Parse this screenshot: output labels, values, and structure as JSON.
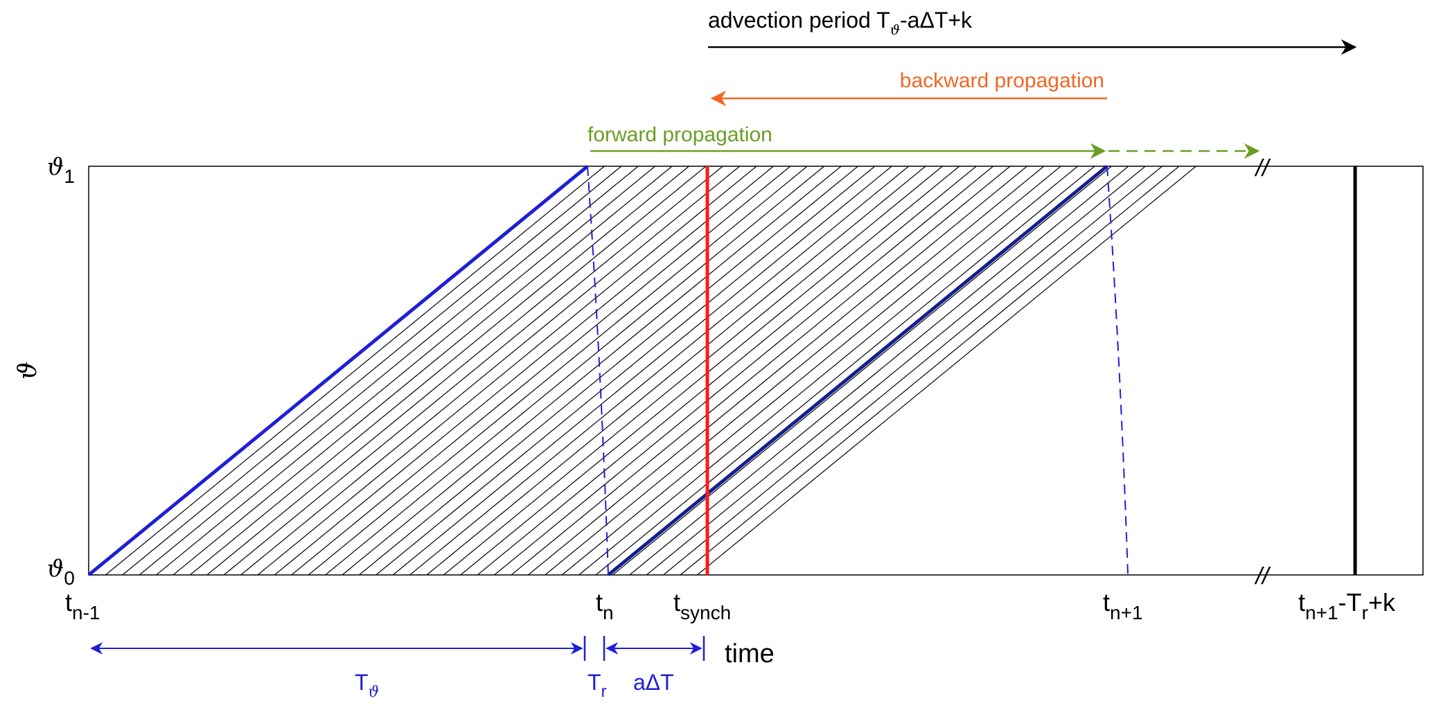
{
  "colors": {
    "black": "#000000",
    "blue": "#1f1fd6",
    "blue_bold": "#0a0ad8",
    "navy": "#141f8f",
    "red": "#ff1a1a",
    "orange": "#f26522",
    "green": "#6a9e22"
  },
  "header": {
    "advection_label": "advection period T",
    "advection_sub": "ϑ",
    "advection_suffix": "-aΔT+k",
    "backward_label": "backward propagation",
    "forward_label": "forward propagation"
  },
  "axes": {
    "y_label": "ϑ",
    "y_top_sym": "ϑ",
    "y_top_sub": "1",
    "y_bottom_sym": "ϑ",
    "y_bottom_sub": "0",
    "x_label": "time",
    "break_mark": "//"
  },
  "ticks": {
    "t_nm1": {
      "base": "t",
      "sub": "n-1"
    },
    "t_n": {
      "base": "t",
      "sub": "n"
    },
    "t_synch": {
      "base": "t",
      "sub": "synch"
    },
    "t_np1": {
      "base": "t",
      "sub": "n+1"
    },
    "t_end": {
      "base": "t",
      "sub": "n+1",
      "mid": "-T",
      "sub2": "r",
      "end": "+k"
    }
  },
  "intervals": {
    "T_theta": {
      "base": "T",
      "sub": "ϑ"
    },
    "T_r": {
      "base": "T",
      "sub": "r"
    },
    "a_delta_T": "aΔT"
  }
}
